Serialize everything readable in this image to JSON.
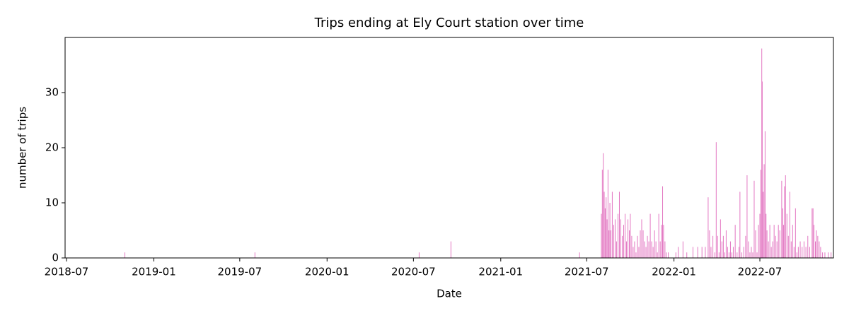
{
  "chart_data": {
    "type": "bar",
    "title": "Trips ending at Ely Court station over time",
    "xlabel": "Date",
    "ylabel": "number of trips",
    "color": "#e377c2",
    "xlim": [
      "2018-06-28",
      "2022-12-03"
    ],
    "xticks": [
      "2018-07",
      "2019-01",
      "2019-07",
      "2020-01",
      "2020-07",
      "2021-01",
      "2021-07",
      "2022-01",
      "2022-07"
    ],
    "ylim": [
      0,
      40
    ],
    "yticks": [
      0,
      10,
      20,
      30
    ],
    "x": [
      "2018-11-01",
      "2019-08-02",
      "2020-07-13",
      "2020-09-18",
      "2021-06-16",
      "2021-08-01",
      "2021-08-03",
      "2021-08-05",
      "2021-08-07",
      "2021-08-09",
      "2021-08-11",
      "2021-08-13",
      "2021-08-15",
      "2021-08-17",
      "2021-08-19",
      "2021-08-21",
      "2021-08-24",
      "2021-08-27",
      "2021-08-30",
      "2021-09-02",
      "2021-09-05",
      "2021-09-08",
      "2021-09-11",
      "2021-09-14",
      "2021-09-17",
      "2021-09-20",
      "2021-09-23",
      "2021-09-26",
      "2021-09-29",
      "2021-10-01",
      "2021-10-04",
      "2021-10-07",
      "2021-10-10",
      "2021-10-13",
      "2021-10-16",
      "2021-10-19",
      "2021-10-22",
      "2021-10-25",
      "2021-10-28",
      "2021-10-31",
      "2021-11-03",
      "2021-11-06",
      "2021-11-09",
      "2021-11-12",
      "2021-11-15",
      "2021-11-18",
      "2021-11-21",
      "2021-11-24",
      "2021-11-27",
      "2021-11-30",
      "2021-12-03",
      "2021-12-06",
      "2021-12-08",
      "2021-12-10",
      "2021-12-13",
      "2021-12-16",
      "2021-12-20",
      "2022-01-05",
      "2022-01-10",
      "2022-01-20",
      "2022-01-28",
      "2022-02-10",
      "2022-02-20",
      "2022-03-01",
      "2022-03-08",
      "2022-03-14",
      "2022-03-17",
      "2022-03-20",
      "2022-03-24",
      "2022-03-28",
      "2022-03-31",
      "2022-04-03",
      "2022-04-06",
      "2022-04-09",
      "2022-04-12",
      "2022-04-15",
      "2022-04-18",
      "2022-04-21",
      "2022-04-24",
      "2022-04-27",
      "2022-04-30",
      "2022-05-03",
      "2022-05-06",
      "2022-05-10",
      "2022-05-14",
      "2022-05-18",
      "2022-05-20",
      "2022-05-24",
      "2022-05-28",
      "2022-06-01",
      "2022-06-04",
      "2022-06-07",
      "2022-06-10",
      "2022-06-13",
      "2022-06-16",
      "2022-06-19",
      "2022-06-22",
      "2022-06-25",
      "2022-06-28",
      "2022-07-01",
      "2022-07-03",
      "2022-07-05",
      "2022-07-06",
      "2022-07-08",
      "2022-07-10",
      "2022-07-12",
      "2022-07-14",
      "2022-07-16",
      "2022-07-19",
      "2022-07-22",
      "2022-07-25",
      "2022-07-28",
      "2022-07-31",
      "2022-08-03",
      "2022-08-06",
      "2022-08-09",
      "2022-08-12",
      "2022-08-16",
      "2022-08-18",
      "2022-08-20",
      "2022-08-22",
      "2022-08-24",
      "2022-08-27",
      "2022-08-30",
      "2022-09-02",
      "2022-09-05",
      "2022-09-08",
      "2022-09-11",
      "2022-09-14",
      "2022-09-17",
      "2022-09-20",
      "2022-09-24",
      "2022-09-28",
      "2022-10-02",
      "2022-10-06",
      "2022-10-10",
      "2022-10-14",
      "2022-10-19",
      "2022-10-21",
      "2022-10-23",
      "2022-10-26",
      "2022-10-28",
      "2022-10-31",
      "2022-11-03",
      "2022-11-06",
      "2022-11-10",
      "2022-11-15",
      "2022-11-22",
      "2022-11-28"
    ],
    "values": [
      1,
      1,
      1,
      3,
      1,
      8,
      16,
      19,
      12,
      9,
      11,
      7,
      16,
      5,
      10,
      5,
      12,
      6,
      7,
      3,
      8,
      12,
      7,
      4,
      6,
      8,
      3,
      7,
      5,
      8,
      4,
      2,
      3,
      1,
      4,
      2,
      5,
      7,
      5,
      3,
      2,
      4,
      3,
      8,
      3,
      2,
      5,
      3,
      1,
      8,
      3,
      6,
      13,
      6,
      3,
      1,
      1,
      1,
      2,
      3,
      1,
      2,
      2,
      2,
      2,
      11,
      5,
      2,
      4,
      1,
      21,
      4,
      1,
      7,
      3,
      4,
      1,
      5,
      2,
      1,
      3,
      1,
      2,
      6,
      1,
      2,
      12,
      1,
      2,
      4,
      15,
      3,
      1,
      2,
      1,
      14,
      5,
      1,
      6,
      8,
      16,
      38,
      32,
      12,
      17,
      23,
      8,
      5,
      3,
      6,
      2,
      3,
      6,
      4,
      3,
      6,
      5,
      14,
      9,
      6,
      13,
      15,
      8,
      4,
      12,
      3,
      6,
      2,
      9,
      1,
      2,
      3,
      2,
      3,
      2,
      4,
      2,
      9,
      9,
      6,
      3,
      5,
      4,
      3,
      2,
      1,
      1,
      1,
      1
    ]
  }
}
